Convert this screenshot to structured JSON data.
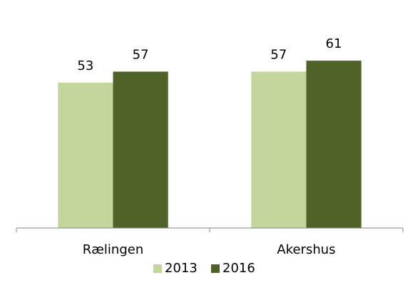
{
  "chart_data": {
    "type": "bar",
    "categories": [
      "Rælingen",
      "Akershus"
    ],
    "series": [
      {
        "name": "2013",
        "color": "#c3d69b",
        "values": [
          53,
          57
        ]
      },
      {
        "name": "2016",
        "color": "#4f6228",
        "values": [
          57,
          61
        ]
      }
    ],
    "ylim": [
      0,
      80
    ],
    "grid": false,
    "legend": "bottom"
  }
}
